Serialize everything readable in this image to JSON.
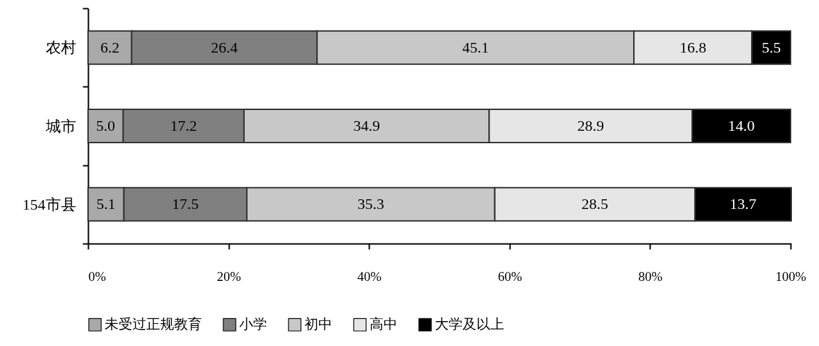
{
  "chart_data": {
    "type": "bar",
    "orientation": "horizontal",
    "stacked": true,
    "categories": [
      "农村",
      "城市",
      "154市县"
    ],
    "series": [
      {
        "name": "未受过正规教育",
        "color": "#a9a9a9",
        "values": [
          6.2,
          5.0,
          5.1
        ],
        "value_labels": [
          "6.2",
          "5.0",
          "5.1"
        ]
      },
      {
        "name": "小学",
        "color": "#808080",
        "values": [
          26.4,
          17.2,
          17.5
        ],
        "value_labels": [
          "26.4",
          "17.2",
          "17.5"
        ]
      },
      {
        "name": "初中",
        "color": "#c8c8c8",
        "values": [
          45.1,
          34.9,
          35.3
        ],
        "value_labels": [
          "45.1",
          "34.9",
          "35.3"
        ]
      },
      {
        "name": "高中",
        "color": "#e6e6e6",
        "values": [
          16.8,
          28.9,
          28.5
        ],
        "value_labels": [
          "16.8",
          "28.9",
          "28.5"
        ]
      },
      {
        "name": "大学及以上",
        "color": "#000000",
        "values": [
          5.5,
          14.0,
          13.7
        ],
        "value_labels": [
          "5.5",
          "14.0",
          "13.7"
        ]
      }
    ],
    "xlim": [
      0,
      100.1
    ],
    "xticks": [
      {
        "value": 0,
        "label": "0%"
      },
      {
        "value": 20,
        "label": "20%"
      },
      {
        "value": 40,
        "label": "40%"
      },
      {
        "value": 60,
        "label": "60%"
      },
      {
        "value": 80,
        "label": "80%"
      },
      {
        "value": 100,
        "label": "100%"
      }
    ],
    "legend": "bottom"
  }
}
